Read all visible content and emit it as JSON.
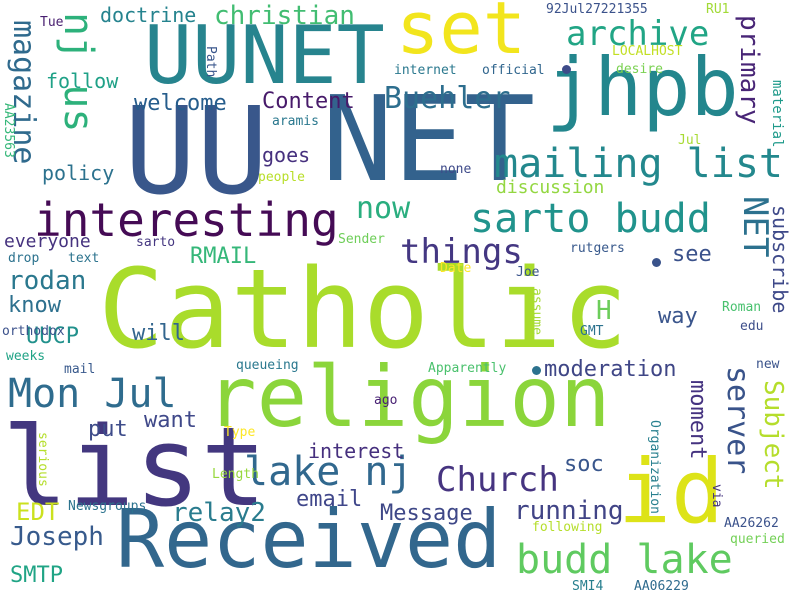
{
  "words": [
    {
      "text": "Catholic",
      "color": "#a9dc2b"
    },
    {
      "text": "religion",
      "color": "#8bd53b"
    },
    {
      "text": "NET",
      "color": "#33628d"
    },
    {
      "text": "UU",
      "color": "#39578b"
    },
    {
      "text": "list",
      "color": "#43377f"
    },
    {
      "text": "Received",
      "color": "#32678d"
    },
    {
      "text": "UUNET",
      "color": "#27848e"
    },
    {
      "text": "jhpb",
      "color": "#23868d"
    },
    {
      "text": "set",
      "color": "#f2e51d"
    },
    {
      "text": "id",
      "color": "#dde318"
    },
    {
      "text": "interesting",
      "color": "#450b55"
    },
    {
      "text": "sarto budd",
      "color": "#20938c"
    },
    {
      "text": "mailing list",
      "color": "#23888d"
    },
    {
      "text": "lake nj",
      "color": "#31688e"
    },
    {
      "text": "budd lake",
      "color": "#5fca60"
    },
    {
      "text": "Mon Jul",
      "color": "#2f6c8e"
    },
    {
      "text": "Church",
      "color": "#463480"
    },
    {
      "text": "nj us",
      "color": "#2db17b"
    },
    {
      "text": "archive",
      "color": "#21a585"
    },
    {
      "text": "christian",
      "color": "#42bd72"
    },
    {
      "text": "magazine",
      "color": "#2f6a8d"
    },
    {
      "text": "Buehler",
      "color": "#2d6e8e"
    },
    {
      "text": "primary",
      "color": "#482576"
    },
    {
      "text": "Content",
      "color": "#471a6a"
    },
    {
      "text": "welcome",
      "color": "#265d8c"
    },
    {
      "text": "now",
      "color": "#2aae7f"
    },
    {
      "text": "things",
      "color": "#443782"
    },
    {
      "text": "NET",
      "color": "#2c718e"
    },
    {
      "text": "server",
      "color": "#39538a"
    },
    {
      "text": "Subject",
      "color": "#b5dd2b"
    },
    {
      "text": "moment",
      "color": "#453380"
    },
    {
      "text": "moderation",
      "color": "#3f4686"
    },
    {
      "text": "running",
      "color": "#414486"
    },
    {
      "text": "relay2",
      "color": "#2a7c8e"
    },
    {
      "text": "Joseph",
      "color": "#375a8c"
    },
    {
      "text": "Message",
      "color": "#3e4787"
    },
    {
      "text": "SMTP",
      "color": "#20a485"
    },
    {
      "text": "EDT",
      "color": "#cbe11e"
    },
    {
      "text": "UUCP",
      "color": "#21918c"
    },
    {
      "text": "RMAIL",
      "color": "#35b779"
    },
    {
      "text": "rodan",
      "color": "#2a788e"
    },
    {
      "text": "know",
      "color": "#2d708e"
    },
    {
      "text": "will",
      "color": "#32658e"
    },
    {
      "text": "want",
      "color": "#3f4889"
    },
    {
      "text": "put",
      "color": "#3e4c8a"
    },
    {
      "text": "soc",
      "color": "#39568c"
    },
    {
      "text": "email",
      "color": "#40478a"
    },
    {
      "text": "interest",
      "color": "#46307e"
    },
    {
      "text": "way",
      "color": "#3a558c"
    },
    {
      "text": "see",
      "color": "#3b528b"
    },
    {
      "text": "H",
      "color": "#6ccd5a"
    },
    {
      "text": "subscribe",
      "color": "#3e4989"
    },
    {
      "text": "everyone",
      "color": "#46337f"
    },
    {
      "text": "discussion",
      "color": "#93d741"
    },
    {
      "text": "policy",
      "color": "#2c728e"
    },
    {
      "text": "goes",
      "color": "#46307e"
    },
    {
      "text": "doctrine",
      "color": "#25838e"
    },
    {
      "text": "follow",
      "color": "#1fa187"
    },
    {
      "text": "magazine",
      "color": "#2f6a8d"
    },
    {
      "text": "92Jul27221355",
      "color": "#3b528b"
    },
    {
      "text": "RU1",
      "color": "#a2da37"
    },
    {
      "text": "LOCALHOST",
      "color": "#c2df23"
    },
    {
      "text": "desire",
      "color": "#7ad151"
    },
    {
      "text": "internet",
      "color": "#2a788e"
    },
    {
      "text": "official",
      "color": "#31668e"
    },
    {
      "text": "Path",
      "color": "#39568c"
    },
    {
      "text": "Tue",
      "color": "#481f70"
    },
    {
      "text": "material",
      "color": "#1f9a8a"
    },
    {
      "text": "Jul",
      "color": "#a8db34"
    },
    {
      "text": "aramis",
      "color": "#2a788e"
    },
    {
      "text": "AA23563",
      "color": "#35b779"
    },
    {
      "text": "people",
      "color": "#b8de29"
    },
    {
      "text": "none",
      "color": "#3e4a89"
    },
    {
      "text": "sarto",
      "color": "#453781"
    },
    {
      "text": "Sender",
      "color": "#6ece58"
    },
    {
      "text": "drop",
      "color": "#2c728e"
    },
    {
      "text": "text",
      "color": "#2c738e"
    },
    {
      "text": "orthodox",
      "color": "#3b518b"
    },
    {
      "text": "Date",
      "color": "#fde725"
    },
    {
      "text": "Joe",
      "color": "#3a548c"
    },
    {
      "text": "rutgers",
      "color": "#38598c"
    },
    {
      "text": "Roman",
      "color": "#48c16e"
    },
    {
      "text": "edu",
      "color": "#3d4e8a"
    },
    {
      "text": "assume",
      "color": "#a5db36"
    },
    {
      "text": "GMT",
      "color": "#2c728e"
    },
    {
      "text": "new",
      "color": "#3a538b"
    },
    {
      "text": "weeks",
      "color": "#20a386"
    },
    {
      "text": "mail",
      "color": "#38598c"
    },
    {
      "text": "queueing",
      "color": "#2a788e"
    },
    {
      "text": "Apparently",
      "color": "#4ac16d"
    },
    {
      "text": "ago",
      "color": "#482173"
    },
    {
      "text": "Type",
      "color": "#fde725"
    },
    {
      "text": "serious",
      "color": "#b5de2b"
    },
    {
      "text": "Length",
      "color": "#98d83e"
    },
    {
      "text": "Organization",
      "color": "#277f8e"
    },
    {
      "text": "via",
      "color": "#453581"
    },
    {
      "text": "Newsgroups",
      "color": "#2c738e"
    },
    {
      "text": "following",
      "color": "#b5de2b"
    },
    {
      "text": "AA26262",
      "color": "#3b528b"
    },
    {
      "text": "queried",
      "color": "#73d056"
    },
    {
      "text": "SMI4",
      "color": "#277f8e"
    },
    {
      "text": "AA06229",
      "color": "#2f6b8e"
    }
  ]
}
